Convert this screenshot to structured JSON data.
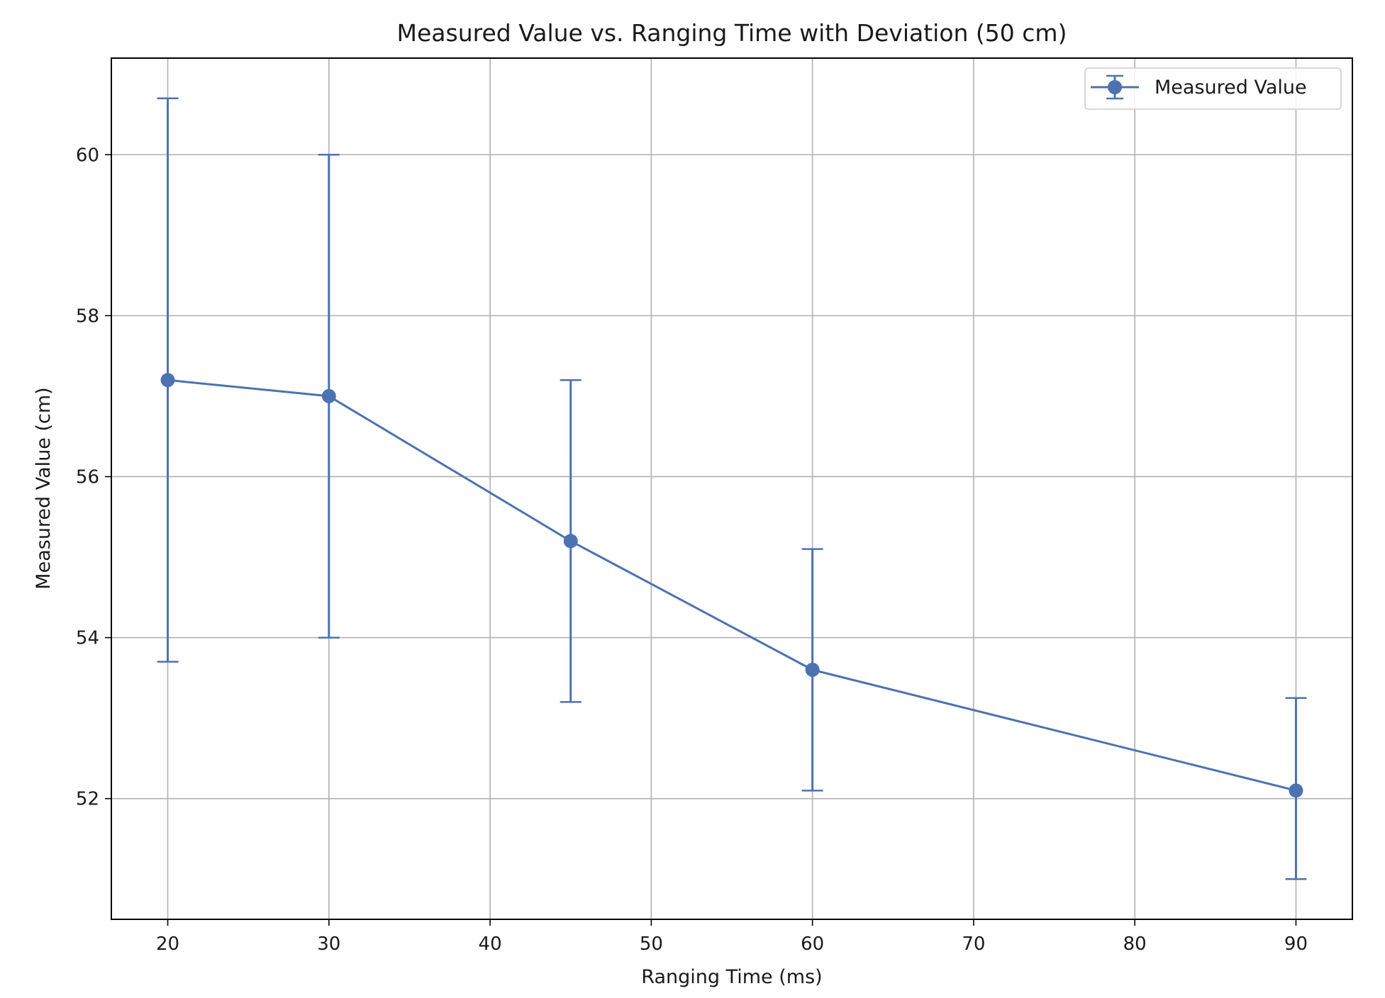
{
  "chart_data": {
    "type": "line",
    "title": "Measured Value vs. Ranging Time with Deviation (50 cm)",
    "xlabel": "Ranging Time (ms)",
    "ylabel": "Measured Value (cm)",
    "xlim": [
      16.5,
      93.5
    ],
    "ylim": [
      50.5,
      61.2
    ],
    "x_ticks": [
      20,
      30,
      40,
      50,
      60,
      70,
      80,
      90
    ],
    "y_ticks": [
      52,
      54,
      56,
      58,
      60
    ],
    "grid": true,
    "legend_position": "top-right",
    "series": [
      {
        "name": "Measured Value",
        "color": "#4c72b0",
        "marker": "circle",
        "x": [
          20,
          30,
          45,
          60,
          90
        ],
        "y": [
          57.2,
          57.0,
          55.2,
          53.6,
          52.1
        ],
        "error_lower": [
          53.7,
          54.0,
          53.2,
          52.1,
          51.0
        ],
        "error_upper": [
          60.7,
          60.0,
          57.2,
          55.1,
          53.25
        ]
      }
    ]
  }
}
